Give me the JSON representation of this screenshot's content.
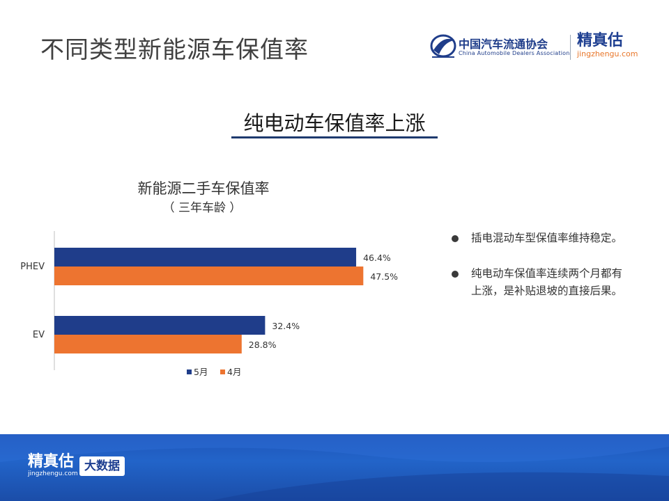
{
  "header": {
    "title": "不同类型新能源车保值率",
    "logo_cada_cn": "中国汽车流通协会",
    "logo_cada_en": "China Automobile Dealers Association",
    "logo_jzg_cn": "精真估",
    "logo_jzg_url": "jingzhengu.com"
  },
  "subtitle": "纯电动车保值率上涨",
  "bullets": [
    "插电混动车型保值率维持稳定。",
    "纯电动车保值率连续两个月都有上涨，是补贴退坡的直接后果。"
  ],
  "footer": {
    "logo_cn": "精真估",
    "logo_url": "jingzhengu.com",
    "badge": "大数据"
  },
  "colors": {
    "series_may": "#1f3d8a",
    "series_april": "#ed7430",
    "footer_blue": "#1f54b8"
  },
  "chart_data": {
    "type": "bar",
    "orientation": "horizontal",
    "title": "新能源二手车保值率",
    "subtitle": "（ 三年车龄 ）",
    "categories": [
      "PHEV",
      "EV"
    ],
    "series": [
      {
        "name": "5月",
        "values": [
          46.4,
          32.4
        ],
        "labels": [
          "46.4%",
          "32.4%"
        ]
      },
      {
        "name": "4月",
        "values": [
          47.5,
          28.8
        ],
        "labels": [
          "47.5%",
          "28.8%"
        ]
      }
    ],
    "xlim": [
      0,
      60
    ],
    "grid": false,
    "legend": "bottom"
  }
}
